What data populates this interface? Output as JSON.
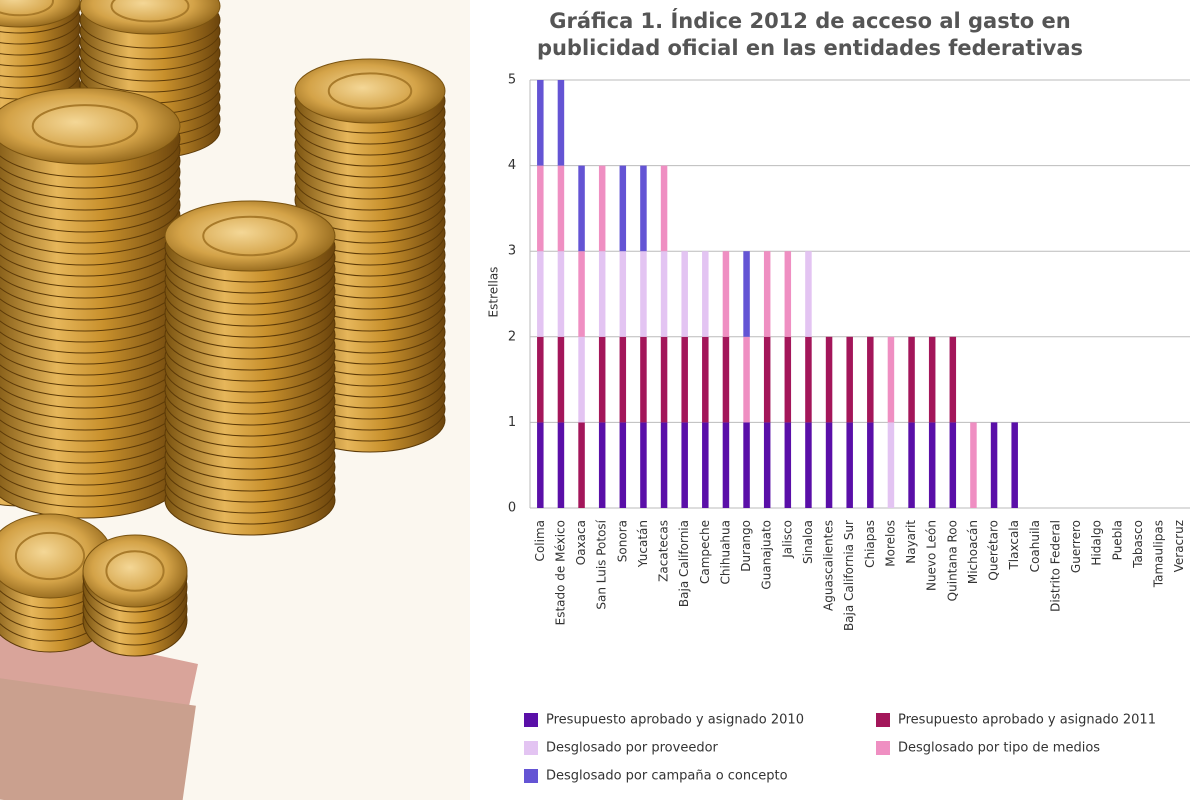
{
  "chart_data": {
    "type": "stacked-bar",
    "title": "Gráfica 1. Índice 2012 de acceso al gasto en publicidad oficial en las entidades federativas",
    "y_label": "Estrellas",
    "categories": [
      "Colima",
      "Estado de México",
      "Oaxaca",
      "San Luis Potosí",
      "Sonora",
      "Yucatán",
      "Zacatecas",
      "Baja California",
      "Campeche",
      "Chihuahua",
      "Durango",
      "Guanajuato",
      "Jalisco",
      "Sinaloa",
      "Aguascalientes",
      "Baja California Sur",
      "Chiapas",
      "Morelos",
      "Nayarit",
      "Nuevo León",
      "Quintana Roo",
      "Michoacán",
      "Querétaro",
      "Tlaxcala",
      "Coahuila",
      "Distrito Federal",
      "Guerrero",
      "Hidalgo",
      "Puebla",
      "Tabasco",
      "Tamaulipas",
      "Veracruz"
    ],
    "series": [
      {
        "name": "Presupuesto aprobado y asignado 2010",
        "color": "#5a0fa8",
        "values": [
          1,
          1,
          0,
          1,
          1,
          1,
          1,
          1,
          1,
          1,
          1,
          1,
          1,
          1,
          1,
          1,
          1,
          0,
          1,
          1,
          1,
          0,
          1,
          1,
          0,
          0,
          0,
          0,
          0,
          0,
          0,
          0
        ]
      },
      {
        "name": "Presupuesto aprobado y asignado 2011",
        "color": "#a3165a",
        "values": [
          1,
          1,
          1,
          1,
          1,
          1,
          1,
          1,
          1,
          1,
          0,
          1,
          1,
          1,
          1,
          1,
          1,
          0,
          1,
          1,
          1,
          0,
          0,
          0,
          0,
          0,
          0,
          0,
          0,
          0,
          0,
          0
        ]
      },
      {
        "name": "Desglosado por proveedor",
        "color": "#e3c4f2",
        "values": [
          1,
          1,
          1,
          1,
          1,
          1,
          1,
          1,
          1,
          0,
          0,
          0,
          0,
          1,
          0,
          0,
          0,
          1,
          0,
          0,
          0,
          0,
          0,
          0,
          0,
          0,
          0,
          0,
          0,
          0,
          0,
          0
        ]
      },
      {
        "name": "Desglosado por tipo de medios",
        "color": "#ef8fc2",
        "values": [
          1,
          1,
          1,
          1,
          0,
          0,
          1,
          0,
          0,
          1,
          1,
          1,
          1,
          0,
          0,
          0,
          0,
          1,
          0,
          0,
          0,
          1,
          0,
          0,
          0,
          0,
          0,
          0,
          0,
          0,
          0,
          0
        ]
      },
      {
        "name": "Desglosado por campaña o concepto",
        "color": "#6454d4",
        "values": [
          1,
          1,
          1,
          0,
          1,
          1,
          0,
          0,
          0,
          0,
          1,
          0,
          0,
          0,
          0,
          0,
          0,
          0,
          0,
          0,
          0,
          0,
          0,
          0,
          0,
          0,
          0,
          0,
          0,
          0,
          0,
          0
        ]
      }
    ],
    "ylim": [
      0,
      5
    ],
    "yticks": [
      0,
      1,
      2,
      3,
      4,
      5
    ],
    "grid": true
  }
}
